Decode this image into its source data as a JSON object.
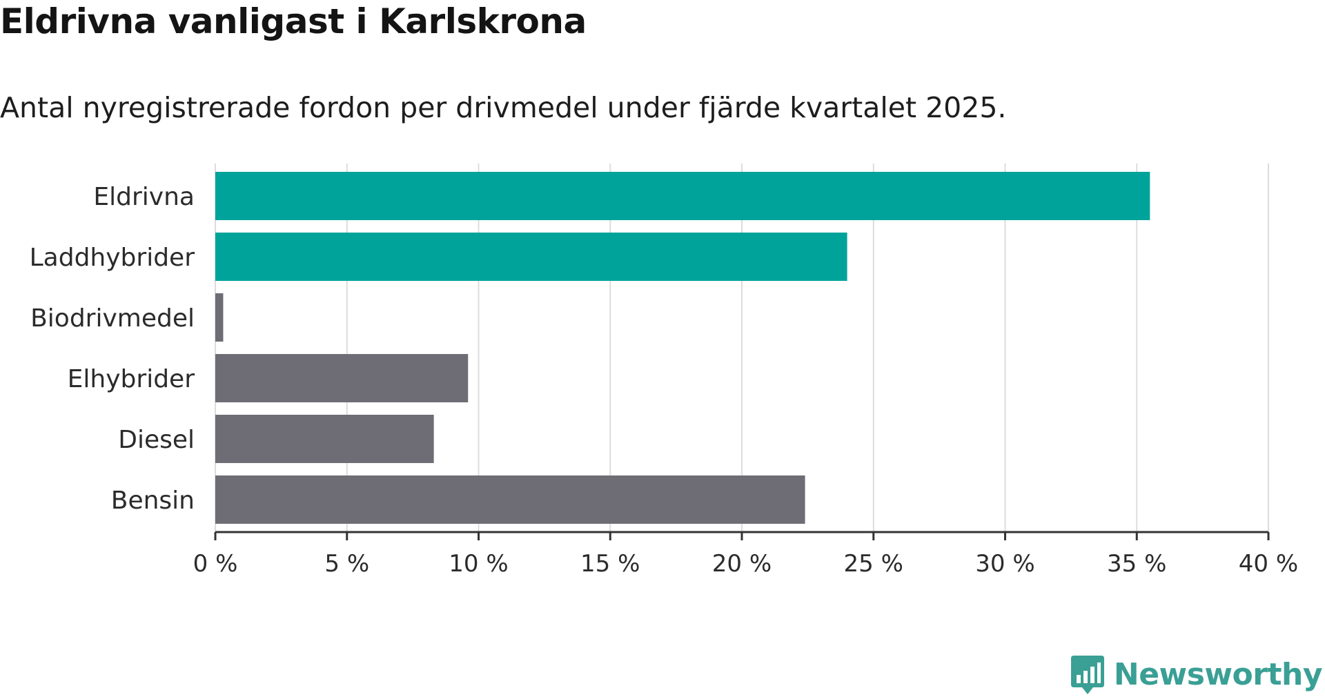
{
  "header": {
    "title": "Eldrivna vanligast i Karlskrona",
    "subtitle": "Antal nyregistrerade fordon per drivmedel under fjärde kvartalet 2025."
  },
  "chart_data": {
    "type": "bar",
    "orientation": "horizontal",
    "categories": [
      "Eldrivna",
      "Laddhybrider",
      "Biodrivmedel",
      "Elhybrider",
      "Diesel",
      "Bensin"
    ],
    "values": [
      35.5,
      24.0,
      0.3,
      9.6,
      8.3,
      22.4
    ],
    "highlight": [
      true,
      true,
      false,
      false,
      false,
      false
    ],
    "xlim": [
      0,
      40
    ],
    "xticks": [
      0,
      5,
      10,
      15,
      20,
      25,
      30,
      35,
      40
    ],
    "xtick_labels": [
      "0 %",
      "5 %",
      "10 %",
      "15 %",
      "20 %",
      "25 %",
      "30 %",
      "35 %",
      "40 %"
    ],
    "grid": true,
    "colors": {
      "highlight": "#00a39a",
      "default": "#6e6d75",
      "grid": "#dcdcdc",
      "axis": "#333333"
    }
  },
  "brand": {
    "name": "Newsworthy",
    "color": "#3a9f95"
  }
}
